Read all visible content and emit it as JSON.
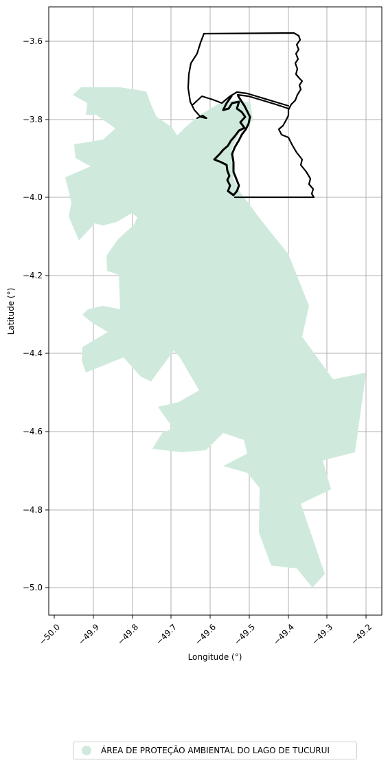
{
  "map": {
    "xlabel": "Longitude (°)",
    "ylabel": "Latitude (°)",
    "x_ticks": [
      "−50.0",
      "−49.9",
      "−49.8",
      "−49.7",
      "−49.6",
      "−49.5",
      "−49.4",
      "−49.3",
      "−49.2"
    ],
    "y_ticks": [
      "−3.6",
      "−3.8",
      "−4.0",
      "−4.2",
      "−4.4",
      "−4.6",
      "−4.8",
      "−5.0"
    ],
    "x_range": [
      -50.01,
      -49.17
    ],
    "y_range": [
      -5.07,
      -3.5
    ],
    "grid": true,
    "area_color": "#cfeadc",
    "boundary_color": "#000000"
  },
  "legend": {
    "label": "ÁREA DE PROTEÇÃO AMBIENTAL DO LAGO DE TUCURUI",
    "color": "#cfeadc",
    "placement": "bottom-center"
  }
}
